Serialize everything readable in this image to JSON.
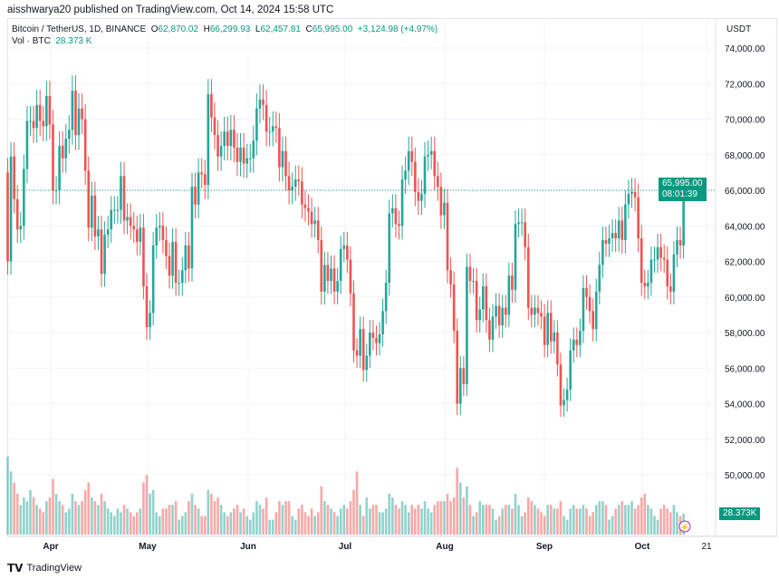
{
  "header": {
    "published": "aisshwarya20 published on TradingView.com, Oct 14, 2024 15:58 UTC",
    "symbol": "Bitcoin / TetherUS, 1D, BINANCE",
    "o_label": "O",
    "o": "62,870.02",
    "h_label": "H",
    "h": "66,299.93",
    "l_label": "L",
    "l": "62,457.81",
    "c_label": "C",
    "c": "65,995.00",
    "change": "+3,124.98 (+4.97%)",
    "vol_label": "Vol · BTC",
    "vol": "28.373 K",
    "currency": "USDT"
  },
  "price_badge": {
    "price": "65,995.00",
    "countdown": "08:01:39"
  },
  "vol_badge": "28.373K",
  "footer": {
    "brand": "TradingView"
  },
  "colors": {
    "up": "#26a69a",
    "down": "#ef5350",
    "accent": "#089981",
    "lightning": "#9c27b0"
  },
  "chart_data": {
    "type": "candlestick",
    "start_date": "2024-03-19",
    "interval": "1D",
    "y_ticks": [
      "74,000.00",
      "72,000.00",
      "70,000.00",
      "68,000.00",
      "66,000.00",
      "64,000.00",
      "62,000.00",
      "60,000.00",
      "58,000.00",
      "56,000.00",
      "54,000.00",
      "52,000.00",
      "50,000.00"
    ],
    "ylim": [
      49000,
      75000
    ],
    "x_ticks": [
      "Apr",
      "May",
      "Jun",
      "Jul",
      "Aug",
      "Sep",
      "Oct",
      "21"
    ],
    "closes_k": [
      62.0,
      67.9,
      65.5,
      63.8,
      64.0,
      67.2,
      69.9,
      69.9,
      69.5,
      70.8,
      69.9,
      69.6,
      71.3,
      69.7,
      66.0,
      66.0,
      68.5,
      67.8,
      68.9,
      69.4,
      71.6,
      69.1,
      70.6,
      70.0,
      67.1,
      63.9,
      65.7,
      63.4,
      63.8,
      61.3,
      63.5,
      63.8,
      64.9,
      64.9,
      64.9,
      66.8,
      64.3,
      64.5,
      64.0,
      63.8,
      63.1,
      63.9,
      60.6,
      58.3,
      59.1,
      62.9,
      63.9,
      64.0,
      63.2,
      62.3,
      61.2,
      63.1,
      60.8,
      60.8,
      61.5,
      62.9,
      61.6,
      66.2,
      65.2,
      67.0,
      66.9,
      66.3,
      71.4,
      70.1,
      69.1,
      67.9,
      68.5,
      69.3,
      68.5,
      69.4,
      68.4,
      67.6,
      68.4,
      67.5,
      67.8,
      67.8,
      68.8,
      70.6,
      71.1,
      70.8,
      69.3,
      69.3,
      69.6,
      69.5,
      67.3,
      68.2,
      66.8,
      66.0,
      66.2,
      66.6,
      66.5,
      65.2,
      65.0,
      64.8,
      64.1,
      64.3,
      63.2,
      60.3,
      61.8,
      60.9,
      61.6,
      60.3,
      60.9,
      62.7,
      62.9,
      62.1,
      60.2,
      57.0,
      56.7,
      58.2,
      55.9,
      56.7,
      58.0,
      57.7,
      57.4,
      57.9,
      59.2,
      60.8,
      64.7,
      65.0,
      64.1,
      64.0,
      66.6,
      67.1,
      68.2,
      67.6,
      65.9,
      65.4,
      65.8,
      67.9,
      68.0,
      68.2,
      66.8,
      66.2,
      64.6,
      65.3,
      61.5,
      60.7,
      58.1,
      54.0,
      56.0,
      55.1,
      61.7,
      60.9,
      60.9,
      58.7,
      59.3,
      60.6,
      58.7,
      57.6,
      58.9,
      59.5,
      58.4,
      59.4,
      59.0,
      61.2,
      60.4,
      64.1,
      64.2,
      64.2,
      62.8,
      59.4,
      59.0,
      59.4,
      59.1,
      58.9,
      57.3,
      59.1,
      57.5,
      58.0,
      56.2,
      53.9,
      54.2,
      54.8,
      57.0,
      57.6,
      57.3,
      58.1,
      60.5,
      60.0,
      59.2,
      58.2,
      60.3,
      61.8,
      63.2,
      63.0,
      63.3,
      63.6,
      63.3,
      64.3,
      63.2,
      65.2,
      65.8,
      65.9,
      65.6,
      63.3,
      60.8,
      60.6,
      60.8,
      62.1,
      62.1,
      62.8,
      62.2,
      62.1,
      60.6,
      60.3,
      62.4,
      63.2,
      62.9,
      66.0
    ],
    "volume_k": [
      105,
      85,
      70,
      55,
      40,
      50,
      45,
      60,
      50,
      40,
      35,
      30,
      45,
      50,
      75,
      55,
      45,
      40,
      30,
      35,
      55,
      45,
      40,
      45,
      60,
      70,
      50,
      45,
      40,
      55,
      45,
      35,
      30,
      25,
      35,
      30,
      40,
      35,
      30,
      25,
      30,
      35,
      70,
      80,
      55,
      60,
      30,
      25,
      35,
      35,
      40,
      40,
      45,
      20,
      25,
      30,
      45,
      55,
      40,
      35,
      25,
      25,
      60,
      55,
      45,
      50,
      40,
      30,
      25,
      30,
      35,
      40,
      30,
      35,
      25,
      20,
      30,
      45,
      40,
      35,
      50,
      20,
      20,
      30,
      45,
      40,
      45,
      45,
      25,
      20,
      35,
      40,
      30,
      25,
      35,
      25,
      30,
      65,
      45,
      40,
      35,
      30,
      25,
      35,
      40,
      35,
      45,
      60,
      85,
      40,
      25,
      50,
      35,
      40,
      40,
      30,
      30,
      35,
      55,
      50,
      40,
      35,
      45,
      40,
      30,
      40,
      35,
      40,
      35,
      45,
      35,
      30,
      40,
      45,
      45,
      45,
      55,
      45,
      50,
      90,
      70,
      50,
      65,
      40,
      25,
      30,
      45,
      40,
      40,
      40,
      35,
      20,
      25,
      35,
      40,
      40,
      35,
      55,
      40,
      25,
      30,
      50,
      45,
      40,
      35,
      30,
      25,
      40,
      40,
      35,
      35,
      45,
      25,
      20,
      35,
      40,
      35,
      35,
      40,
      35,
      25,
      30,
      40,
      45,
      45,
      40,
      20,
      25,
      35,
      40,
      45,
      40,
      40,
      45,
      35,
      40,
      50,
      55,
      40,
      35,
      25,
      20,
      35,
      40,
      35,
      30,
      40,
      30,
      25,
      28.4
    ]
  }
}
